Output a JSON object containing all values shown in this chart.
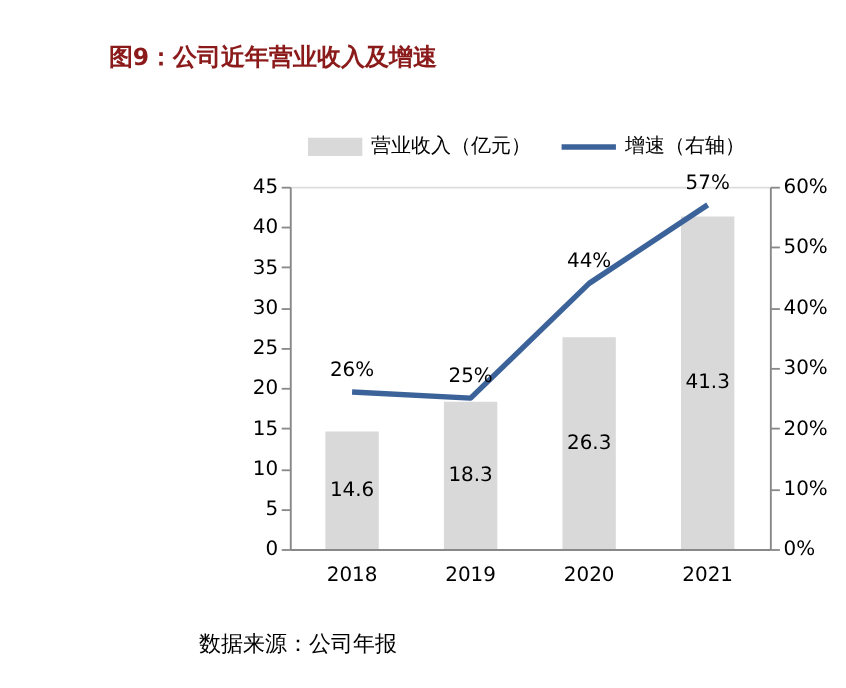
{
  "chart_data": {
    "type": "bar",
    "title": "图9：公司近年营业收入及增速",
    "categories": [
      "2018",
      "2019",
      "2020",
      "2021"
    ],
    "series": [
      {
        "name": "营业收入（亿元）",
        "color": "#d9d9d9",
        "values": [
          14.6,
          18.3,
          26.3,
          41.3
        ],
        "value_labels": [
          "14.6",
          "18.3",
          "26.3",
          "41.3"
        ]
      },
      {
        "name": "增速（右轴）",
        "type": "line",
        "axis": "y2",
        "color": "#3c6399",
        "values": [
          26,
          25,
          44,
          57
        ],
        "value_labels": [
          "26%",
          "25%",
          "44%",
          "57%"
        ]
      }
    ],
    "ylim": [
      0,
      45
    ],
    "yticks": [
      0,
      5,
      10,
      15,
      20,
      25,
      30,
      35,
      40,
      45
    ],
    "y2lim": [
      0,
      60
    ],
    "y2ticks": [
      {
        "value": 0,
        "label": "0%"
      },
      {
        "value": 10,
        "label": "10%"
      },
      {
        "value": 20,
        "label": "20%"
      },
      {
        "value": 30,
        "label": "30%"
      },
      {
        "value": 40,
        "label": "40%"
      },
      {
        "value": 50,
        "label": "50%"
      },
      {
        "value": 60,
        "label": "60%"
      }
    ],
    "grid": false,
    "legend": "top",
    "marker": "none",
    "line_style": "solid",
    "annotations": [
      "数据来源：公司年报"
    ]
  }
}
